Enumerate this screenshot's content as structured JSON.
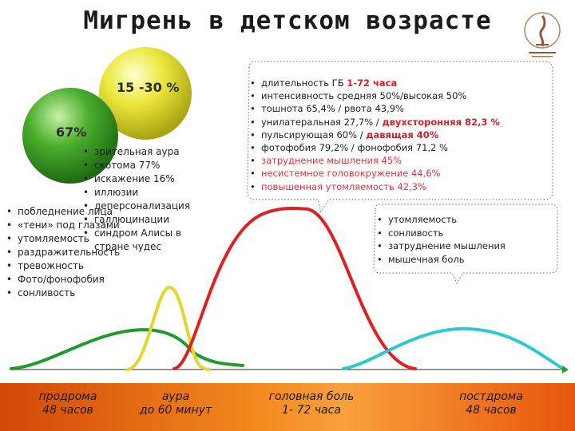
{
  "title": "Мигрень в детском возрасте",
  "bubbles": {
    "yellow_label": "15 -30 %",
    "green_label": "67%"
  },
  "prodroma_symptoms": [
    "побледнение лица",
    "«тени» под глазами",
    "утомляемость",
    "раздражительность",
    "тревожность",
    "Фото/фонофобия",
    "сонливость"
  ],
  "aura_symptoms": [
    "зрительная аура",
    "скотома 77%",
    "искажение 16%",
    "иллюзии",
    "деперсонализация",
    "галлюцинации",
    "синдром Алисы в стране чудес"
  ],
  "headache_symptoms": [
    {
      "parts": [
        {
          "text": "длительность ГБ "
        },
        {
          "text": "1-72 часа",
          "style": "redb"
        }
      ]
    },
    {
      "parts": [
        {
          "text": "интенсивность средняя 50%/высокая 50%"
        }
      ]
    },
    {
      "parts": [
        {
          "text": "тошнота 65,4% / рвота 43,9%"
        }
      ]
    },
    {
      "parts": [
        {
          "text": "унилатеральная 27,7% / "
        },
        {
          "text": "двухсторонняя 82,3 %",
          "style": "redb"
        }
      ]
    },
    {
      "parts": [
        {
          "text": "пульсирующая 60% / "
        },
        {
          "text": "давящая 40%",
          "style": "redb"
        }
      ]
    },
    {
      "parts": [
        {
          "text": "фотофобия 79,2% / фонофобия 71,2 %"
        }
      ]
    },
    {
      "parts": [
        {
          "text": "затруднение мышления 45%",
          "style": "red"
        }
      ]
    },
    {
      "parts": [
        {
          "text": "несистемное головокружение 44,6%",
          "style": "red"
        }
      ]
    },
    {
      "parts": [
        {
          "text": "повышенная утомляемость 42,3%",
          "style": "red"
        }
      ]
    }
  ],
  "postdroma_symptoms": [
    "утомляемость",
    "сонливость",
    "затруднение мышления",
    "мышечная боль"
  ],
  "phases": [
    {
      "name": "продрома",
      "duration": "48 часов"
    },
    {
      "name": "аура",
      "duration": "до 60 минут"
    },
    {
      "name": "головная боль",
      "duration": "1- 72 часа"
    },
    {
      "name": "постдрома",
      "duration": "48 часов"
    }
  ],
  "colors": {
    "prodroma_curve": "#1f9a2e",
    "aura_curve": "#e6d52a",
    "headache_curve": "#e02020",
    "postdroma_curve": "#2ec8d0",
    "yellow_ball": "#e8e23a",
    "green_ball": "#3fa52a"
  }
}
